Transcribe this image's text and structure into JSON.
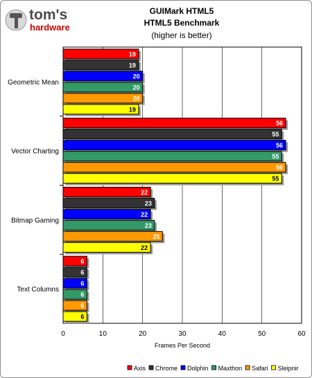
{
  "brand": {
    "name": "tom's",
    "sub": "hardware"
  },
  "chart_data": {
    "type": "bar",
    "orientation": "horizontal",
    "title": "GUIMark HTML5",
    "subtitle": "HTML5 Benchmark",
    "note": "(higher is better)",
    "xlabel": "Frames Per Second",
    "ylabel": "",
    "xlim": [
      0,
      60
    ],
    "xticks": [
      0,
      10,
      20,
      30,
      40,
      50,
      60
    ],
    "grid": true,
    "legend_position": "bottom-right",
    "categories": [
      "Geometric Mean",
      "Vector Charting",
      "Bitmap Gaming",
      "Text Columns"
    ],
    "series": [
      {
        "name": "Axis",
        "color": "#ff0000",
        "values": [
          19,
          56,
          22,
          6
        ]
      },
      {
        "name": "Chrome",
        "color": "#333333",
        "values": [
          19,
          55,
          23,
          6
        ]
      },
      {
        "name": "Dolphin",
        "color": "#0000ff",
        "values": [
          20,
          56,
          22,
          6
        ]
      },
      {
        "name": "Maxthon",
        "color": "#339966",
        "values": [
          20,
          55,
          23,
          6
        ]
      },
      {
        "name": "Safari",
        "color": "#ff9900",
        "values": [
          20,
          56,
          25,
          6
        ]
      },
      {
        "name": "Sleipnir",
        "color": "#ffff00",
        "values": [
          19,
          55,
          22,
          6
        ]
      }
    ]
  }
}
